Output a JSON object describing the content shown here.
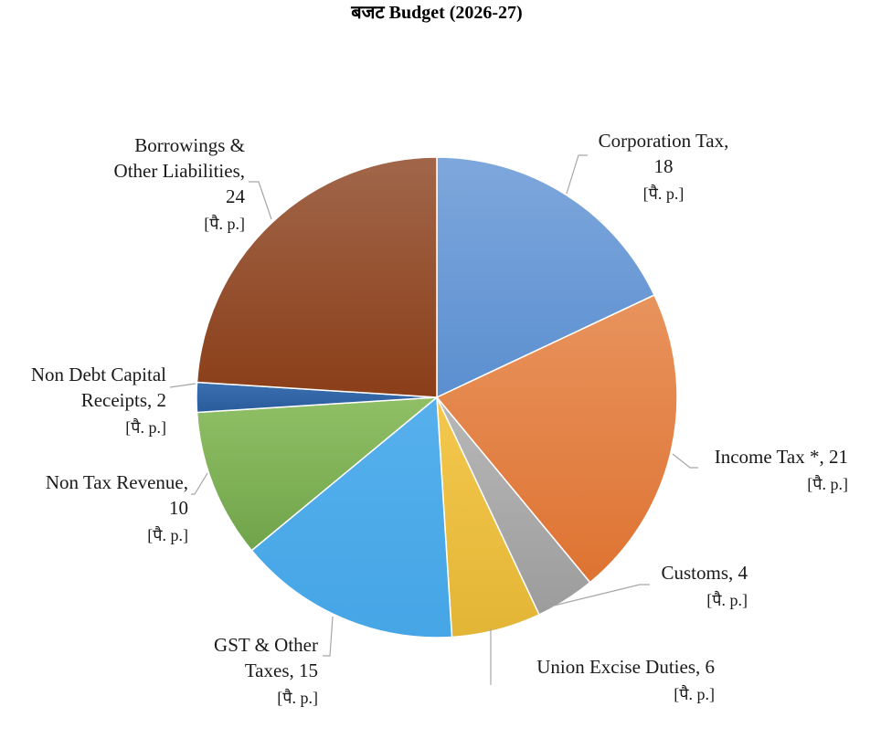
{
  "chart_data": {
    "type": "pie",
    "title": "बजट  Budget  (2026-27)",
    "unit_label": "[पै. p.]",
    "slices": [
      {
        "label_lines": [
          "Corporation Tax,",
          "18"
        ],
        "value": 18,
        "color": "#5b8fd0",
        "color_light": "#7ea7dc"
      },
      {
        "label_lines": [
          "Income Tax *, 21"
        ],
        "value": 21,
        "color": "#de7332",
        "color_light": "#e8935d"
      },
      {
        "label_lines": [
          "Customs, 4"
        ],
        "value": 4,
        "color": "#9c9c9c",
        "color_light": "#b8b8b8"
      },
      {
        "label_lines": [
          "Union Excise Duties, 6"
        ],
        "value": 6,
        "color": "#e3b536",
        "color_light": "#f4c84e"
      },
      {
        "label_lines": [
          "GST & Other",
          "Taxes, 15"
        ],
        "value": 15,
        "color": "#45a5e6",
        "color_light": "#56b0ec"
      },
      {
        "label_lines": [
          "Non Tax Revenue,",
          "10"
        ],
        "value": 10,
        "color": "#70a44a",
        "color_light": "#90bf66"
      },
      {
        "label_lines": [
          "Non Debt Capital",
          "Receipts, 2"
        ],
        "value": 2,
        "color": "#2a5c9c",
        "color_light": "#3b6fb0"
      },
      {
        "label_lines": [
          "Borrowings &",
          "Other Liabilities,",
          "24"
        ],
        "value": 24,
        "color": "#8a3e18",
        "color_light": "#a1664a"
      }
    ]
  }
}
